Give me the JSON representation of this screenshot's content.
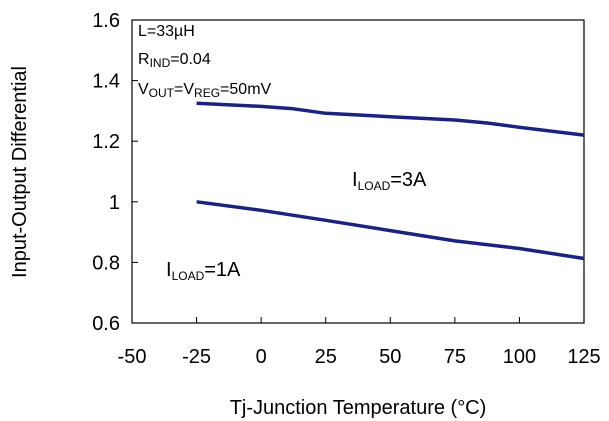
{
  "chart_data": {
    "type": "line",
    "xlabel": "Tj-Junction Temperature (°C)",
    "ylabel": "Input-Output Differential",
    "xlim": [
      -50,
      125
    ],
    "ylim": [
      0.6,
      1.6
    ],
    "x_ticks": [
      -50,
      -25,
      0,
      25,
      50,
      75,
      100,
      125
    ],
    "y_ticks": [
      0.6,
      0.8,
      1,
      1.2,
      1.4,
      1.6
    ],
    "x_tick_labels": [
      "-50",
      "-25",
      "0",
      "25",
      "50",
      "75",
      "100",
      "125"
    ],
    "y_tick_labels": [
      "0.6",
      "0.8",
      "1",
      "1.2",
      "1.4",
      "1.6"
    ],
    "grid": false,
    "line_color": "#1a237e",
    "series": [
      {
        "label_main": "I",
        "label_sub": "LOAD",
        "label_rest": "=3A",
        "x": [
          -25,
          0,
          12.5,
          25,
          50,
          75,
          87.5,
          100,
          125
        ],
        "y": [
          1.325,
          1.315,
          1.307,
          1.292,
          1.281,
          1.27,
          1.26,
          1.246,
          1.22
        ]
      },
      {
        "label_main": "I",
        "label_sub": "LOAD",
        "label_rest": "=1A",
        "x": [
          -25,
          0,
          25,
          50,
          75,
          100,
          125
        ],
        "y": [
          1.0,
          0.972,
          0.939,
          0.905,
          0.871,
          0.846,
          0.813
        ]
      }
    ],
    "conditions": {
      "line1": "L=33µH",
      "line2_main": "R",
      "line2_sub": "IND",
      "line2_rest": "=0.04",
      "line3_a": "V",
      "line3_a_sub": "OUT",
      "line3_b": "=V",
      "line3_b_sub": "REG",
      "line3_c": "=50mV"
    }
  }
}
